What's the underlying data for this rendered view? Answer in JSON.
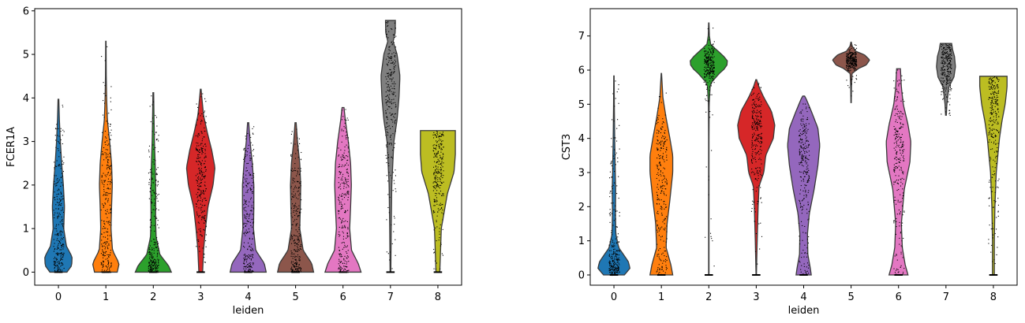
{
  "chart_data": [
    {
      "type": "violin",
      "xlabel": "leiden",
      "ylabel": "FCER1A",
      "categories": [
        "0",
        "1",
        "2",
        "3",
        "4",
        "5",
        "6",
        "7",
        "8"
      ],
      "ylim": [
        -0.3,
        6.05
      ],
      "yticks": [
        0,
        1,
        2,
        3,
        4,
        5,
        6
      ],
      "grid": false,
      "colors": [
        "#1f77b4",
        "#ff7f0e",
        "#2ca02c",
        "#d62728",
        "#9467bd",
        "#8c564b",
        "#e377c2",
        "#7f7f7f",
        "#bcbd22"
      ],
      "series": [
        {
          "category": "0",
          "min": 0,
          "max": 3.97,
          "median": 1.2,
          "density": [
            [
              0,
              0.45
            ],
            [
              0.15,
              0.7
            ],
            [
              0.35,
              0.72
            ],
            [
              0.6,
              0.42
            ],
            [
              1.0,
              0.28
            ],
            [
              1.5,
              0.32
            ],
            [
              2.0,
              0.26
            ],
            [
              2.5,
              0.17
            ],
            [
              3.0,
              0.1
            ],
            [
              3.5,
              0.05
            ],
            [
              3.97,
              0.02
            ]
          ]
        },
        {
          "category": "1",
          "min": 0,
          "max": 5.3,
          "median": 1.3,
          "density": [
            [
              0,
              0.6
            ],
            [
              0.2,
              0.7
            ],
            [
              0.5,
              0.35
            ],
            [
              1.0,
              0.27
            ],
            [
              1.5,
              0.3
            ],
            [
              2.0,
              0.34
            ],
            [
              2.5,
              0.3
            ],
            [
              3.0,
              0.2
            ],
            [
              3.5,
              0.08
            ],
            [
              4.0,
              0.04
            ],
            [
              4.5,
              0.02
            ],
            [
              5.3,
              0.01
            ]
          ]
        },
        {
          "category": "2",
          "min": 0,
          "max": 4.12,
          "median": 0.6,
          "density": [
            [
              0,
              0.95
            ],
            [
              0.15,
              0.8
            ],
            [
              0.4,
              0.35
            ],
            [
              0.8,
              0.15
            ],
            [
              1.2,
              0.12
            ],
            [
              1.8,
              0.13
            ],
            [
              2.5,
              0.1
            ],
            [
              3.0,
              0.06
            ],
            [
              3.5,
              0.04
            ],
            [
              4.12,
              0.02
            ]
          ]
        },
        {
          "category": "3",
          "min": 0,
          "max": 4.2,
          "median": 2.4,
          "density": [
            [
              0,
              0.1
            ],
            [
              0.5,
              0.15
            ],
            [
              1.0,
              0.25
            ],
            [
              1.5,
              0.38
            ],
            [
              2.0,
              0.65
            ],
            [
              2.4,
              0.75
            ],
            [
              2.8,
              0.58
            ],
            [
              3.2,
              0.35
            ],
            [
              3.6,
              0.15
            ],
            [
              4.0,
              0.06
            ],
            [
              4.2,
              0.02
            ]
          ]
        },
        {
          "category": "4",
          "min": 0,
          "max": 3.43,
          "median": 1.4,
          "density": [
            [
              0,
              0.95
            ],
            [
              0.2,
              0.85
            ],
            [
              0.5,
              0.4
            ],
            [
              1.0,
              0.28
            ],
            [
              1.5,
              0.3
            ],
            [
              2.0,
              0.3
            ],
            [
              2.5,
              0.22
            ],
            [
              3.0,
              0.1
            ],
            [
              3.43,
              0.03
            ]
          ]
        },
        {
          "category": "5",
          "min": 0,
          "max": 3.43,
          "median": 1.6,
          "density": [
            [
              0,
              0.95
            ],
            [
              0.2,
              0.85
            ],
            [
              0.5,
              0.4
            ],
            [
              1.0,
              0.22
            ],
            [
              1.5,
              0.25
            ],
            [
              2.0,
              0.27
            ],
            [
              2.5,
              0.22
            ],
            [
              3.0,
              0.1
            ],
            [
              3.43,
              0.03
            ]
          ]
        },
        {
          "category": "6",
          "min": 0,
          "max": 3.78,
          "median": 1.8,
          "density": [
            [
              0,
              0.95
            ],
            [
              0.2,
              0.8
            ],
            [
              0.5,
              0.45
            ],
            [
              1.0,
              0.35
            ],
            [
              1.5,
              0.4
            ],
            [
              2.0,
              0.44
            ],
            [
              2.5,
              0.4
            ],
            [
              3.0,
              0.28
            ],
            [
              3.5,
              0.12
            ],
            [
              3.78,
              0.05
            ]
          ]
        },
        {
          "category": "7",
          "min": 0,
          "max": 5.78,
          "median": 4.3,
          "density": [
            [
              0,
              0.02
            ],
            [
              1.0,
              0.04
            ],
            [
              2.0,
              0.07
            ],
            [
              3.0,
              0.18
            ],
            [
              3.5,
              0.35
            ],
            [
              4.0,
              0.45
            ],
            [
              4.5,
              0.5
            ],
            [
              5.0,
              0.35
            ],
            [
              5.3,
              0.14
            ],
            [
              5.5,
              0.25
            ],
            [
              5.78,
              0.26
            ]
          ]
        },
        {
          "category": "8",
          "min": 0,
          "max": 3.25,
          "median": 1.9,
          "density": [
            [
              0,
              0.1
            ],
            [
              1.0,
              0.18
            ],
            [
              1.8,
              0.5
            ],
            [
              2.3,
              0.85
            ],
            [
              2.7,
              0.92
            ],
            [
              3.0,
              0.92
            ],
            [
              3.25,
              0.92
            ]
          ]
        }
      ]
    },
    {
      "type": "violin",
      "xlabel": "leiden",
      "ylabel": "CST3",
      "categories": [
        "0",
        "1",
        "2",
        "3",
        "4",
        "5",
        "6",
        "7",
        "8"
      ],
      "ylim": [
        -0.3,
        7.8
      ],
      "yticks": [
        0,
        1,
        2,
        3,
        4,
        5,
        6,
        7
      ],
      "grid": false,
      "colors": [
        "#1f77b4",
        "#ff7f0e",
        "#2ca02c",
        "#d62728",
        "#9467bd",
        "#8c564b",
        "#e377c2",
        "#7f7f7f",
        "#bcbd22"
      ],
      "series": [
        {
          "category": "0",
          "min": 0,
          "max": 5.83,
          "median": 0.3,
          "density": [
            [
              0,
              0.55
            ],
            [
              0.2,
              0.85
            ],
            [
              0.4,
              0.75
            ],
            [
              0.8,
              0.25
            ],
            [
              1.2,
              0.1
            ],
            [
              1.8,
              0.08
            ],
            [
              2.5,
              0.09
            ],
            [
              3.0,
              0.07
            ],
            [
              4.0,
              0.04
            ],
            [
              5.0,
              0.02
            ],
            [
              5.83,
              0.01
            ]
          ]
        },
        {
          "category": "1",
          "min": 0,
          "max": 5.9,
          "median": 3.1,
          "density": [
            [
              0,
              0.6
            ],
            [
              0.3,
              0.5
            ],
            [
              0.8,
              0.25
            ],
            [
              1.5,
              0.3
            ],
            [
              2.2,
              0.45
            ],
            [
              3.0,
              0.6
            ],
            [
              3.5,
              0.6
            ],
            [
              4.0,
              0.45
            ],
            [
              4.6,
              0.25
            ],
            [
              5.2,
              0.08
            ],
            [
              5.9,
              0.01
            ]
          ]
        },
        {
          "category": "2",
          "min": 0,
          "max": 7.38,
          "median": 6.2,
          "density": [
            [
              0,
              0.01
            ],
            [
              1.0,
              0.01
            ],
            [
              2.0,
              0.01
            ],
            [
              3.0,
              0.01
            ],
            [
              4.0,
              0.01
            ],
            [
              5.0,
              0.02
            ],
            [
              5.6,
              0.08
            ],
            [
              5.9,
              0.55
            ],
            [
              6.1,
              0.95
            ],
            [
              6.3,
              0.98
            ],
            [
              6.5,
              0.6
            ],
            [
              6.75,
              0.1
            ],
            [
              7.0,
              0.03
            ],
            [
              7.38,
              0.01
            ]
          ]
        },
        {
          "category": "3",
          "min": 0,
          "max": 5.72,
          "median": 4.4,
          "density": [
            [
              0,
              0.01
            ],
            [
              1.0,
              0.05
            ],
            [
              2.0,
              0.1
            ],
            [
              2.6,
              0.15
            ],
            [
              3.0,
              0.4
            ],
            [
              3.5,
              0.5
            ],
            [
              4.0,
              0.9
            ],
            [
              4.4,
              0.98
            ],
            [
              4.8,
              0.8
            ],
            [
              5.2,
              0.4
            ],
            [
              5.5,
              0.15
            ],
            [
              5.72,
              0.02
            ]
          ]
        },
        {
          "category": "4",
          "min": 0,
          "max": 5.24,
          "median": 3.6,
          "density": [
            [
              0,
              0.4
            ],
            [
              0.2,
              0.35
            ],
            [
              0.6,
              0.22
            ],
            [
              1.2,
              0.2
            ],
            [
              1.8,
              0.3
            ],
            [
              2.5,
              0.55
            ],
            [
              3.2,
              0.75
            ],
            [
              3.8,
              0.85
            ],
            [
              4.3,
              0.75
            ],
            [
              4.8,
              0.4
            ],
            [
              5.2,
              0.1
            ],
            [
              5.24,
              0.05
            ]
          ]
        },
        {
          "category": "5",
          "min": 5.05,
          "max": 6.82,
          "median": 6.3,
          "density": [
            [
              5.05,
              0.01
            ],
            [
              5.5,
              0.02
            ],
            [
              5.9,
              0.05
            ],
            [
              6.05,
              0.4
            ],
            [
              6.15,
              0.8
            ],
            [
              6.3,
              0.98
            ],
            [
              6.45,
              0.7
            ],
            [
              6.55,
              0.25
            ],
            [
              6.7,
              0.06
            ],
            [
              6.82,
              0.01
            ]
          ]
        },
        {
          "category": "6",
          "min": 0,
          "max": 6.04,
          "median": 3.9,
          "density": [
            [
              0,
              0.5
            ],
            [
              0.3,
              0.35
            ],
            [
              0.8,
              0.2
            ],
            [
              1.5,
              0.15
            ],
            [
              2.5,
              0.3
            ],
            [
              3.3,
              0.6
            ],
            [
              3.9,
              0.65
            ],
            [
              4.4,
              0.5
            ],
            [
              5.0,
              0.25
            ],
            [
              5.5,
              0.15
            ],
            [
              6.04,
              0.1
            ]
          ]
        },
        {
          "category": "7",
          "min": 4.68,
          "max": 6.78,
          "median": 6.3,
          "density": [
            [
              4.68,
              0.02
            ],
            [
              5.0,
              0.05
            ],
            [
              5.5,
              0.15
            ],
            [
              5.8,
              0.42
            ],
            [
              6.1,
              0.5
            ],
            [
              6.4,
              0.45
            ],
            [
              6.6,
              0.35
            ],
            [
              6.78,
              0.3
            ]
          ]
        },
        {
          "category": "8",
          "min": 0,
          "max": 5.82,
          "median": 5.0,
          "density": [
            [
              0,
              0.05
            ],
            [
              1.0,
              0.05
            ],
            [
              2.0,
              0.08
            ],
            [
              3.0,
              0.15
            ],
            [
              4.0,
              0.32
            ],
            [
              4.5,
              0.45
            ],
            [
              5.0,
              0.62
            ],
            [
              5.5,
              0.72
            ],
            [
              5.82,
              0.72
            ]
          ]
        }
      ]
    }
  ]
}
